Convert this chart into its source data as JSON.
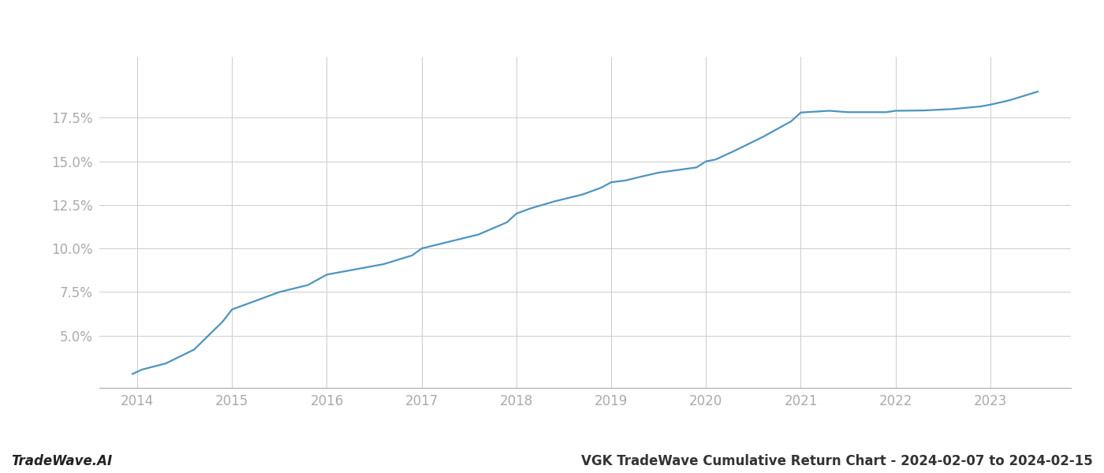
{
  "title": "VGK TradeWave Cumulative Return Chart - 2024-02-07 to 2024-02-15",
  "watermark": "TradeWave.AI",
  "line_color": "#4d94c1",
  "background_color": "#ffffff",
  "grid_color": "#cccccc",
  "x_values": [
    2013.95,
    2014.05,
    2014.3,
    2014.6,
    2014.9,
    2015.0,
    2015.2,
    2015.5,
    2015.8,
    2016.0,
    2016.3,
    2016.6,
    2016.9,
    2017.0,
    2017.3,
    2017.6,
    2017.9,
    2018.0,
    2018.15,
    2018.4,
    2018.7,
    2018.9,
    2019.0,
    2019.15,
    2019.3,
    2019.5,
    2019.7,
    2019.9,
    2020.0,
    2020.1,
    2020.3,
    2020.6,
    2020.9,
    2021.0,
    2021.15,
    2021.3,
    2021.5,
    2021.7,
    2021.9,
    2022.0,
    2022.3,
    2022.6,
    2022.9,
    2023.0,
    2023.2,
    2023.5
  ],
  "y_values": [
    2.8,
    3.05,
    3.4,
    4.2,
    5.8,
    6.5,
    6.9,
    7.5,
    7.9,
    8.5,
    8.8,
    9.1,
    9.6,
    10.0,
    10.4,
    10.8,
    11.5,
    12.0,
    12.3,
    12.7,
    13.1,
    13.5,
    13.8,
    13.9,
    14.1,
    14.35,
    14.5,
    14.65,
    15.0,
    15.1,
    15.6,
    16.4,
    17.3,
    17.8,
    17.85,
    17.9,
    17.82,
    17.82,
    17.82,
    17.9,
    17.92,
    18.0,
    18.15,
    18.25,
    18.5,
    19.0
  ],
  "xlim": [
    2013.6,
    2023.85
  ],
  "ylim": [
    2.0,
    21.0
  ],
  "yticks": [
    5.0,
    7.5,
    10.0,
    12.5,
    15.0,
    17.5
  ],
  "xticks": [
    2014,
    2015,
    2016,
    2017,
    2018,
    2019,
    2020,
    2021,
    2022,
    2023
  ],
  "tick_color": "#aaaaaa",
  "label_fontsize": 12,
  "watermark_fontsize": 12,
  "title_fontsize": 12,
  "line_width": 1.6
}
